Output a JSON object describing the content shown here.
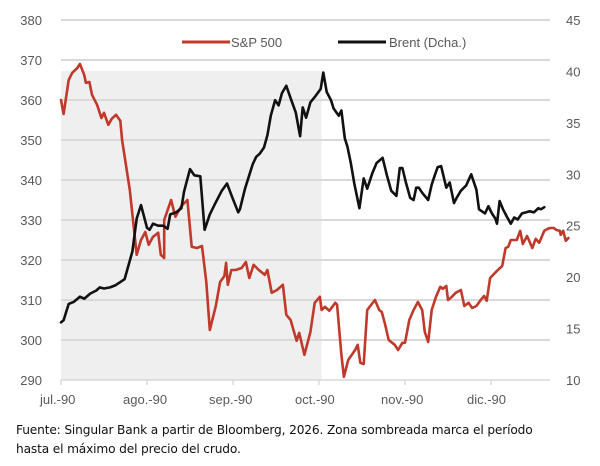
{
  "chart_data": {
    "type": "line",
    "title": "",
    "xlabel": "",
    "ylabel_left": "S&P 500",
    "ylabel_right": "Brent (Dcha.)",
    "x_unit": "months since jul.-90",
    "x_range": [
      0,
      5.75
    ],
    "x_tick_labels": [
      "jul.-90",
      "ago.-90",
      "sep.-90",
      "oct.-90",
      "nov.-90",
      "dic.-90"
    ],
    "y_left": {
      "range": [
        290,
        380
      ],
      "ticks": [
        290,
        300,
        310,
        320,
        330,
        340,
        350,
        360,
        370,
        380
      ]
    },
    "y_right": {
      "range": [
        10,
        45
      ],
      "ticks": [
        10,
        15,
        20,
        25,
        30,
        35,
        40,
        45
      ]
    },
    "grid": true,
    "legend": {
      "placement": "top-center",
      "entries": [
        "S&P 500",
        "Brent (Dcha.)"
      ]
    },
    "shaded_region": {
      "x_from": 0,
      "x_to": 3.03,
      "meaning": "Zona sombreada: período hasta el máximo del precio del crudo"
    },
    "series": [
      {
        "name": "S&P 500",
        "axis": "left",
        "color": "#c0392b",
        "points": [
          [
            0.0,
            360.0
          ],
          [
            0.03,
            356.5
          ],
          [
            0.09,
            365.0
          ],
          [
            0.13,
            366.8
          ],
          [
            0.19,
            368.0
          ],
          [
            0.22,
            369.0
          ],
          [
            0.27,
            366.3
          ],
          [
            0.29,
            364.3
          ],
          [
            0.33,
            364.5
          ],
          [
            0.36,
            361.3
          ],
          [
            0.42,
            358.8
          ],
          [
            0.47,
            355.5
          ],
          [
            0.5,
            356.8
          ],
          [
            0.55,
            353.8
          ],
          [
            0.59,
            355.3
          ],
          [
            0.64,
            356.3
          ],
          [
            0.69,
            354.8
          ],
          [
            0.71,
            350.0
          ],
          [
            0.8,
            337.5
          ],
          [
            0.88,
            321.3
          ],
          [
            0.93,
            325.0
          ],
          [
            0.98,
            327.0
          ],
          [
            1.02,
            323.8
          ],
          [
            1.07,
            325.8
          ],
          [
            1.13,
            326.8
          ],
          [
            1.16,
            321.3
          ],
          [
            1.2,
            320.5
          ],
          [
            1.2,
            330.0
          ],
          [
            1.28,
            335.0
          ],
          [
            1.33,
            330.8
          ],
          [
            1.4,
            333.5
          ],
          [
            1.47,
            335.0
          ],
          [
            1.52,
            323.3
          ],
          [
            1.58,
            323.0
          ],
          [
            1.64,
            323.5
          ],
          [
            1.69,
            314.5
          ],
          [
            1.73,
            302.5
          ],
          [
            1.8,
            308.5
          ],
          [
            1.85,
            314.5
          ],
          [
            1.9,
            316.0
          ],
          [
            1.92,
            319.3
          ],
          [
            1.94,
            313.8
          ],
          [
            1.98,
            317.5
          ],
          [
            2.03,
            317.5
          ],
          [
            2.1,
            318.0
          ],
          [
            2.15,
            319.5
          ],
          [
            2.19,
            315.5
          ],
          [
            2.24,
            318.8
          ],
          [
            2.3,
            317.5
          ],
          [
            2.37,
            316.3
          ],
          [
            2.4,
            317.5
          ],
          [
            2.45,
            311.8
          ],
          [
            2.51,
            312.5
          ],
          [
            2.58,
            313.8
          ],
          [
            2.62,
            306.3
          ],
          [
            2.67,
            305.0
          ],
          [
            2.74,
            299.8
          ],
          [
            2.77,
            301.8
          ],
          [
            2.83,
            296.3
          ],
          [
            2.9,
            302.0
          ],
          [
            2.95,
            309.3
          ],
          [
            3.01,
            310.8
          ],
          [
            3.03,
            307.5
          ],
          [
            3.07,
            308.3
          ],
          [
            3.12,
            307.3
          ],
          [
            3.19,
            309.3
          ],
          [
            3.21,
            308.8
          ],
          [
            3.26,
            296.3
          ],
          [
            3.29,
            290.8
          ],
          [
            3.34,
            295.0
          ],
          [
            3.42,
            297.5
          ],
          [
            3.45,
            298.8
          ],
          [
            3.48,
            294.3
          ],
          [
            3.52,
            294.0
          ],
          [
            3.56,
            307.5
          ],
          [
            3.65,
            310.0
          ],
          [
            3.7,
            307.5
          ],
          [
            3.73,
            307.0
          ],
          [
            3.77,
            303.8
          ],
          [
            3.81,
            300.0
          ],
          [
            3.88,
            298.8
          ],
          [
            3.92,
            297.5
          ],
          [
            3.97,
            299.3
          ],
          [
            4.0,
            299.3
          ],
          [
            4.05,
            305.0
          ],
          [
            4.1,
            307.5
          ],
          [
            4.15,
            309.5
          ],
          [
            4.2,
            307.5
          ],
          [
            4.23,
            302.0
          ],
          [
            4.27,
            299.5
          ],
          [
            4.31,
            307.5
          ],
          [
            4.36,
            310.8
          ],
          [
            4.41,
            313.3
          ],
          [
            4.44,
            312.8
          ],
          [
            4.48,
            313.5
          ],
          [
            4.5,
            310.0
          ],
          [
            4.53,
            310.5
          ],
          [
            4.59,
            311.8
          ],
          [
            4.65,
            312.5
          ],
          [
            4.69,
            308.5
          ],
          [
            4.74,
            309.3
          ],
          [
            4.78,
            308.0
          ],
          [
            4.83,
            308.5
          ],
          [
            4.88,
            310.0
          ],
          [
            4.92,
            311.0
          ],
          [
            4.95,
            309.8
          ],
          [
            4.99,
            315.5
          ],
          [
            5.07,
            317.3
          ],
          [
            5.13,
            318.5
          ],
          [
            5.17,
            323.0
          ],
          [
            5.2,
            323.3
          ],
          [
            5.23,
            325.0
          ],
          [
            5.27,
            325.0
          ],
          [
            5.3,
            325.0
          ],
          [
            5.34,
            327.3
          ],
          [
            5.37,
            324.0
          ],
          [
            5.42,
            326.0
          ],
          [
            5.45,
            324.5
          ],
          [
            5.48,
            323.0
          ],
          [
            5.52,
            325.3
          ],
          [
            5.56,
            324.3
          ],
          [
            5.62,
            327.3
          ],
          [
            5.66,
            327.8
          ],
          [
            5.69,
            328.0
          ],
          [
            5.73,
            328.0
          ],
          [
            5.76,
            327.5
          ],
          [
            5.8,
            327.3
          ],
          [
            5.81,
            326.3
          ],
          [
            5.84,
            327.3
          ],
          [
            5.87,
            324.8
          ],
          [
            5.9,
            325.5
          ]
        ]
      },
      {
        "name": "Brent (Dcha.)",
        "axis": "right",
        "color": "#111111",
        "points": [
          [
            0.0,
            15.6
          ],
          [
            0.03,
            15.8
          ],
          [
            0.09,
            17.4
          ],
          [
            0.15,
            17.6
          ],
          [
            0.22,
            18.1
          ],
          [
            0.27,
            17.9
          ],
          [
            0.34,
            18.4
          ],
          [
            0.41,
            18.7
          ],
          [
            0.45,
            19.0
          ],
          [
            0.5,
            18.9
          ],
          [
            0.57,
            19.0
          ],
          [
            0.63,
            19.2
          ],
          [
            0.74,
            19.8
          ],
          [
            0.83,
            22.5
          ],
          [
            0.88,
            25.7
          ],
          [
            0.93,
            27.0
          ],
          [
            1.0,
            24.8
          ],
          [
            1.03,
            24.6
          ],
          [
            1.07,
            25.2
          ],
          [
            1.13,
            25.0
          ],
          [
            1.19,
            25.0
          ],
          [
            1.24,
            24.7
          ],
          [
            1.27,
            26.1
          ],
          [
            1.34,
            26.3
          ],
          [
            1.4,
            26.7
          ],
          [
            1.43,
            28.3
          ],
          [
            1.5,
            30.5
          ],
          [
            1.55,
            29.9
          ],
          [
            1.62,
            29.8
          ],
          [
            1.67,
            24.6
          ],
          [
            1.73,
            26.1
          ],
          [
            1.79,
            27.1
          ],
          [
            1.87,
            28.4
          ],
          [
            1.93,
            29.1
          ],
          [
            1.99,
            27.8
          ],
          [
            2.06,
            26.3
          ],
          [
            2.08,
            26.6
          ],
          [
            2.14,
            28.6
          ],
          [
            2.2,
            30.2
          ],
          [
            2.23,
            31.0
          ],
          [
            2.27,
            31.7
          ],
          [
            2.31,
            32.0
          ],
          [
            2.36,
            32.6
          ],
          [
            2.4,
            33.8
          ],
          [
            2.44,
            35.7
          ],
          [
            2.49,
            37.2
          ],
          [
            2.53,
            36.7
          ],
          [
            2.57,
            37.9
          ],
          [
            2.62,
            38.6
          ],
          [
            2.67,
            37.4
          ],
          [
            2.73,
            36.0
          ],
          [
            2.78,
            33.7
          ],
          [
            2.81,
            36.5
          ],
          [
            2.85,
            35.5
          ],
          [
            2.9,
            37.0
          ],
          [
            2.95,
            37.5
          ],
          [
            3.02,
            38.3
          ],
          [
            3.05,
            39.9
          ],
          [
            3.09,
            38.0
          ],
          [
            3.14,
            37.2
          ],
          [
            3.17,
            36.4
          ],
          [
            3.23,
            35.7
          ],
          [
            3.26,
            36.2
          ],
          [
            3.3,
            33.5
          ],
          [
            3.33,
            32.7
          ],
          [
            3.37,
            31.1
          ],
          [
            3.41,
            29.1
          ],
          [
            3.47,
            26.7
          ],
          [
            3.52,
            29.6
          ],
          [
            3.56,
            28.6
          ],
          [
            3.62,
            30.1
          ],
          [
            3.67,
            31.1
          ],
          [
            3.74,
            31.6
          ],
          [
            3.79,
            29.9
          ],
          [
            3.84,
            28.4
          ],
          [
            3.9,
            27.9
          ],
          [
            3.94,
            30.6
          ],
          [
            3.97,
            30.6
          ],
          [
            4.01,
            29.2
          ],
          [
            4.06,
            27.7
          ],
          [
            4.1,
            27.5
          ],
          [
            4.13,
            28.7
          ],
          [
            4.16,
            28.7
          ],
          [
            4.2,
            28.2
          ],
          [
            4.27,
            27.5
          ],
          [
            4.31,
            29.0
          ],
          [
            4.35,
            30.0
          ],
          [
            4.38,
            30.7
          ],
          [
            4.42,
            30.8
          ],
          [
            4.48,
            28.7
          ],
          [
            4.52,
            29.2
          ],
          [
            4.57,
            27.2
          ],
          [
            4.6,
            27.7
          ],
          [
            4.65,
            28.4
          ],
          [
            4.71,
            28.9
          ],
          [
            4.77,
            30.0
          ],
          [
            4.83,
            28.5
          ],
          [
            4.86,
            26.6
          ],
          [
            4.93,
            26.2
          ],
          [
            4.97,
            26.9
          ],
          [
            5.01,
            26.2
          ],
          [
            5.05,
            25.7
          ],
          [
            5.07,
            25.2
          ],
          [
            5.1,
            27.4
          ],
          [
            5.14,
            26.6
          ],
          [
            5.19,
            25.8
          ],
          [
            5.23,
            25.2
          ],
          [
            5.27,
            25.8
          ],
          [
            5.31,
            25.6
          ],
          [
            5.36,
            26.2
          ],
          [
            5.41,
            26.3
          ],
          [
            5.45,
            26.4
          ],
          [
            5.5,
            26.3
          ],
          [
            5.55,
            26.7
          ],
          [
            5.58,
            26.6
          ],
          [
            5.62,
            26.8
          ]
        ]
      }
    ]
  },
  "footnote": {
    "line1": "Fuente: Singular Bank a partir de Bloomberg, 2026. Zona sombreada marca el período",
    "line2": "hasta el máximo del precio del crudo."
  }
}
